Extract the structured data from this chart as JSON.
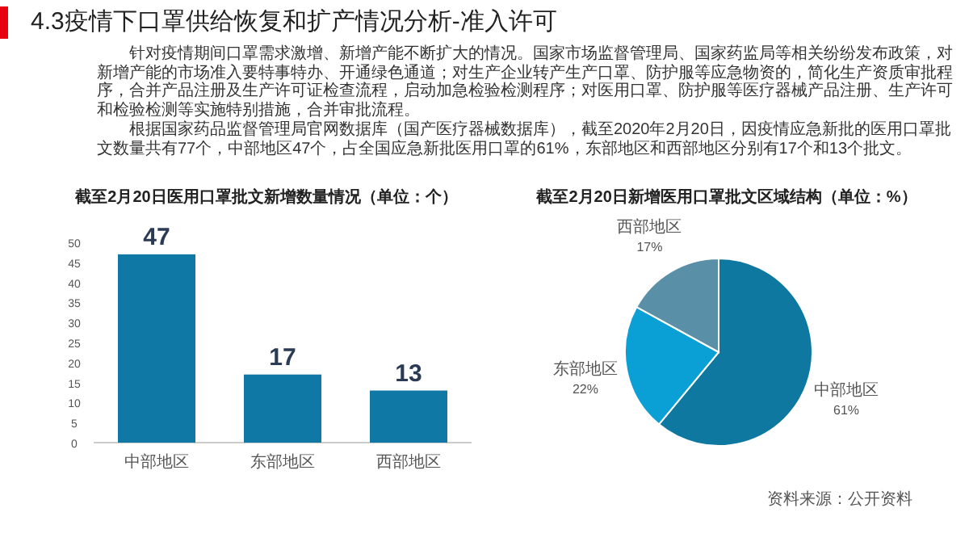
{
  "chart_data": [
    {
      "type": "other",
      "title": "4.3疫情下口罩供给恢复和扩产情况分析-准入许可",
      "annotations": [
        "针对疫情期间口罩需求激增、新增产能不断扩大的情况。国家市场监督管理局、国家药监局等相关纷纷发布政策，对新增产能的市场准入要特事特办、开通绿色通道；对生产企业转产生产口罩、防护服等应急物资的，简化生产资质审批程序，合并产品注册及生产许可证检查流程，启动加急检验检测程序；对医用口罩、防护服等医疗器械产品注册、生产许可和检验检测等实施特别措施，合并审批流程。",
        "根据国家药品监督管理局官网数据库（国产医疗器械数据库），截至2020年2月20日，因疫情应急新批的医用口罩批文数量共有77个，中部地区47个，占全国应急新批医用口罩的61%，东部地区和西部地区分别有17个和13个批文。"
      ]
    },
    {
      "type": "bar",
      "title": "截至2月20日医用口罩批文新增数量情况（单位：个）",
      "categories": [
        "中部地区",
        "东部地区",
        "西部地区"
      ],
      "values": [
        47,
        17,
        13
      ],
      "color": "#0f78a4",
      "ylim": [
        0,
        50
      ],
      "yticks": [
        0,
        5,
        10,
        15,
        20,
        25,
        30,
        35,
        40,
        45,
        50
      ],
      "data_labels": true
    },
    {
      "type": "pie",
      "title": "截至2月20日新增医用口罩批文区域结构（单位：%）",
      "categories": [
        "中部地区",
        "东部地区",
        "西部地区"
      ],
      "values": [
        61,
        22,
        17
      ],
      "colors": [
        "#0f78a0",
        "#0aa0d6",
        "#5a8fa8"
      ],
      "value_labels": [
        "61%",
        "22%",
        "17%"
      ],
      "annotations": [
        "资料来源：公开资料"
      ]
    }
  ]
}
